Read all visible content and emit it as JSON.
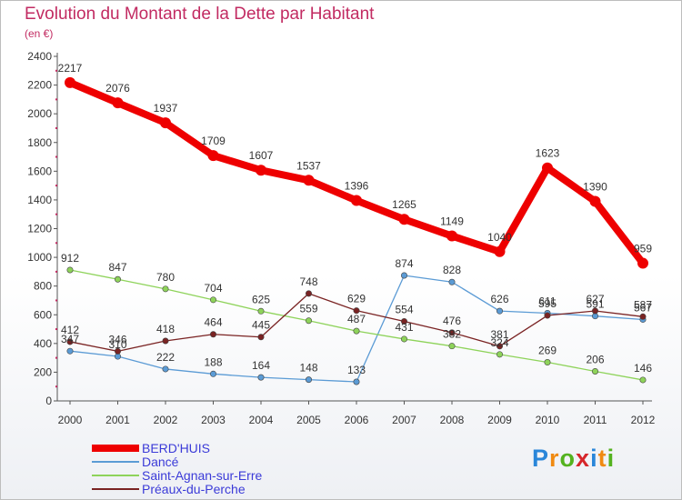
{
  "header": {
    "title": "Evolution du Montant de la Dette par Habitant",
    "subtitle": "(en €)"
  },
  "logo": {
    "letters": [
      "P",
      "r",
      "o",
      "x",
      "i",
      "t",
      "i"
    ],
    "colors": [
      "#2a86d9",
      "#f08a12",
      "#54b21f",
      "#d6262b",
      "#2a86d9",
      "#f08a12",
      "#54b21f"
    ]
  },
  "chart_data": {
    "type": "line",
    "title": "Evolution du Montant de la Dette par Habitant",
    "subtitle": "(en €)",
    "xlabel": "",
    "ylabel": "",
    "ylim": [
      0,
      2400
    ],
    "yticks": [
      "0",
      "200",
      "400",
      "600",
      "800",
      "1000",
      "1200",
      "1400",
      "1600",
      "1800",
      "2000",
      "2200",
      "2400"
    ],
    "categories": [
      "2000",
      "2001",
      "2002",
      "2003",
      "2004",
      "2005",
      "2006",
      "2007",
      "2008",
      "2009",
      "2010",
      "2011",
      "2012"
    ],
    "grid": false,
    "legend_position": "bottom-left",
    "series": [
      {
        "name": "BERD'HUIS",
        "color": "#ee0000",
        "values": [
          2217,
          2076,
          1937,
          1709,
          1607,
          1537,
          1396,
          1265,
          1149,
          1040,
          1623,
          1390,
          959
        ],
        "labels": [
          "2217",
          "2076",
          "1937",
          "1709",
          "1607",
          "1537",
          "1396",
          "1265",
          "1149",
          "1040",
          "1623",
          "1390",
          "959"
        ]
      },
      {
        "name": "Dancé",
        "color": "#5b9bd5",
        "values": [
          347,
          310,
          222,
          188,
          164,
          148,
          133,
          874,
          828,
          626,
          611,
          591,
          567
        ],
        "labels": [
          "347",
          "310",
          "222",
          "188",
          "164",
          "148",
          "133",
          "874",
          "828",
          "626",
          "611",
          "591",
          "567"
        ]
      },
      {
        "name": "Saint-Agnan-sur-Erre",
        "color": "#8ed35a",
        "values": [
          912,
          847,
          780,
          704,
          625,
          559,
          487,
          431,
          382,
          324,
          269,
          206,
          146
        ],
        "labels": [
          "912",
          "847",
          "780",
          "704",
          "625",
          "559",
          "487",
          "431",
          "382",
          "324",
          "269",
          "206",
          "146"
        ]
      },
      {
        "name": "Préaux-du-Perche",
        "color": "#7a2323",
        "values": [
          412,
          346,
          418,
          464,
          445,
          748,
          629,
          554,
          476,
          381,
          595,
          627,
          587
        ],
        "labels": [
          "412",
          "346",
          "418",
          "464",
          "445",
          "748",
          "629",
          "554",
          "476",
          "381",
          "595",
          "627",
          "587"
        ]
      }
    ]
  }
}
